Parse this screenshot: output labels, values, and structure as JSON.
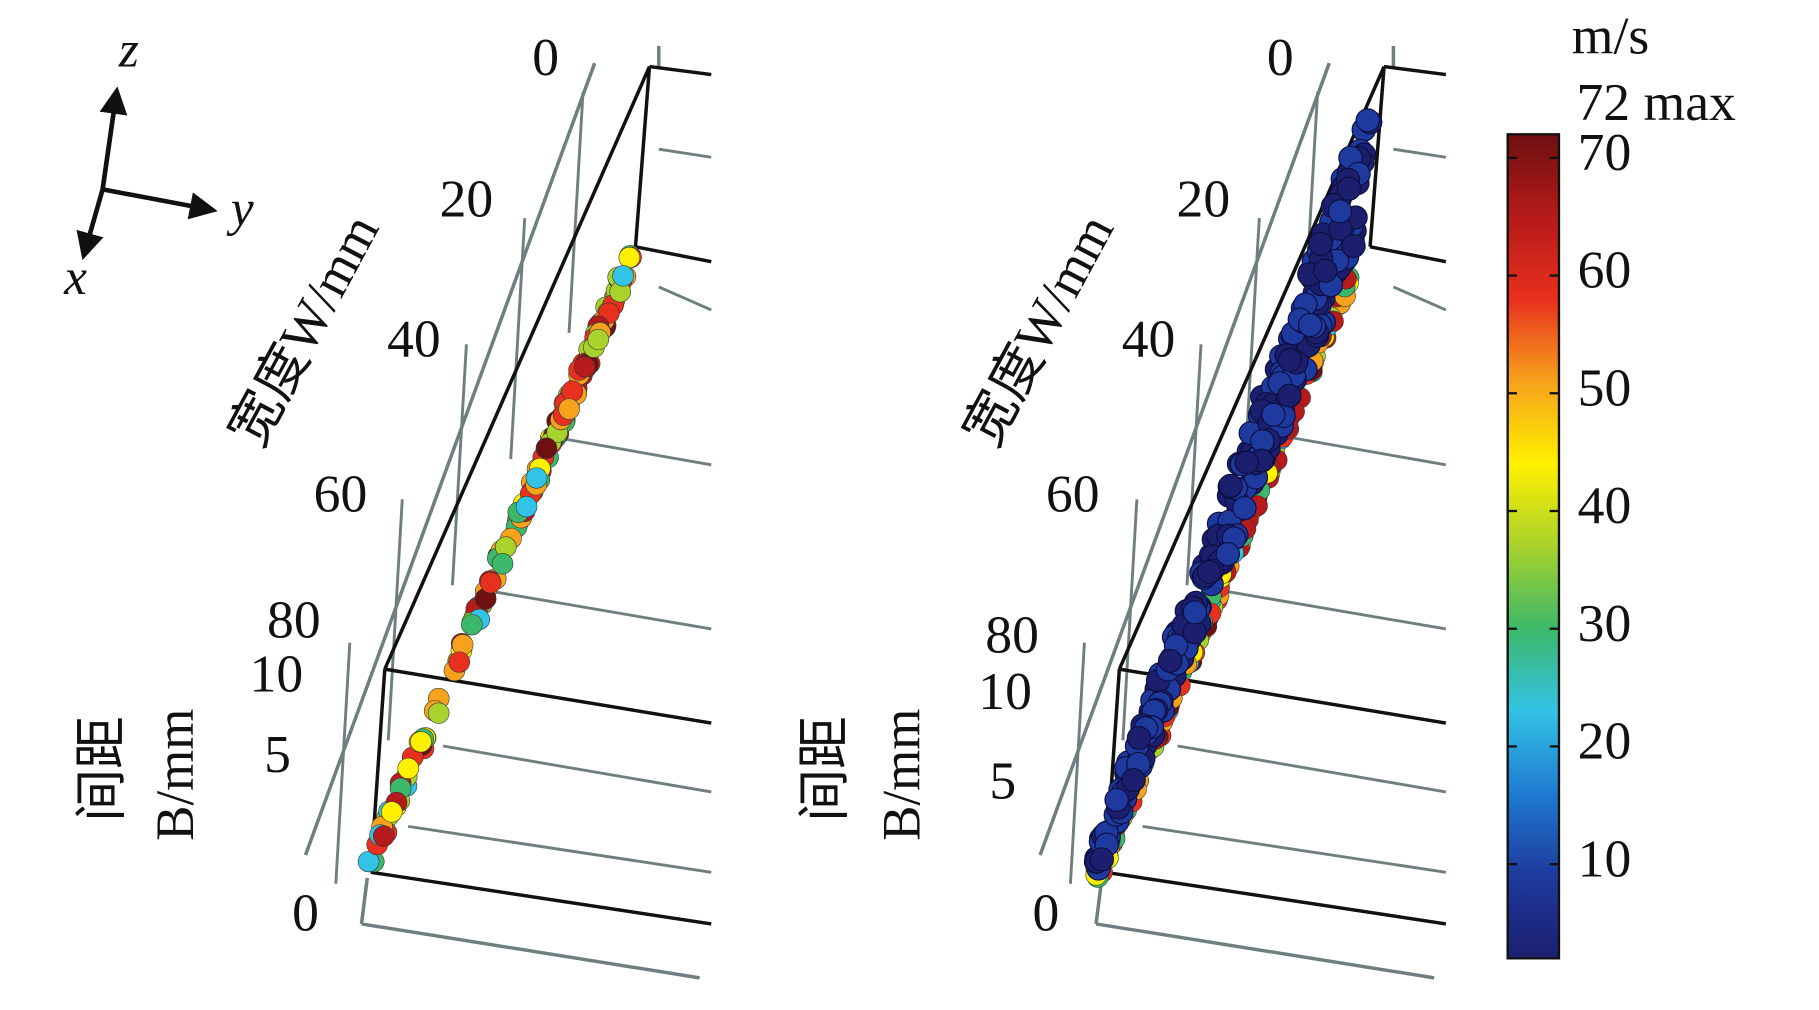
{
  "axes_glyph": {
    "labels": [
      "z",
      "y",
      "x"
    ]
  },
  "panels": [
    {
      "w_axis": {
        "label": "宽度W/mm",
        "ticks": [
          0,
          20,
          40,
          60,
          80
        ]
      },
      "b_axis": {
        "label_lines": [
          "间距",
          "B/mm"
        ],
        "ticks": [
          10,
          5,
          0
        ]
      }
    },
    {
      "w_axis": {
        "label": "宽度W/mm",
        "ticks": [
          0,
          20,
          40,
          60,
          80
        ]
      },
      "b_axis": {
        "label_lines": [
          "间距",
          "B/mm"
        ],
        "ticks": [
          10,
          5,
          0
        ]
      }
    }
  ],
  "colorbar": {
    "unit": "m/s",
    "max_label": "72 max",
    "ticks": [
      70,
      60,
      50,
      40,
      30,
      20,
      10
    ],
    "range": [
      2,
      72
    ],
    "colormap": [
      "#1b1f6e",
      "#1f3a9e",
      "#1e7ad0",
      "#33c3e6",
      "#3db86a",
      "#a8d22c",
      "#fff000",
      "#f7a21c",
      "#e8301e",
      "#b61a1a",
      "#6e1010"
    ]
  }
}
